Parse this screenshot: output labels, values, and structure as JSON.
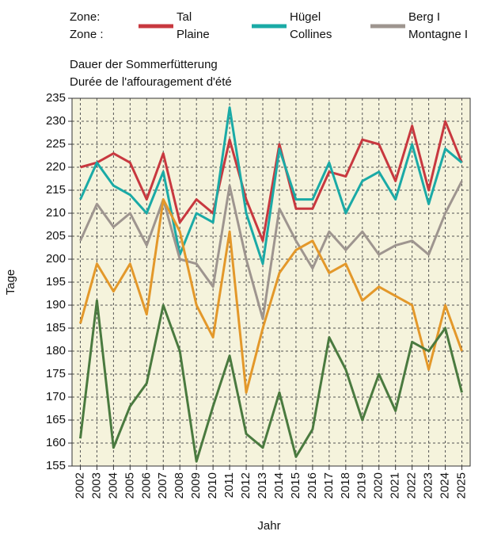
{
  "chart_data": {
    "type": "line",
    "legend_title": [
      "Zone:",
      "Zone :"
    ],
    "title": [
      "Dauer der Sommerfütterung",
      "Durée de l'affouragement d'été"
    ],
    "x_label": "Jahr",
    "y_label": "Tage",
    "categories": [
      "2002",
      "2003",
      "2004",
      "2005",
      "2006",
      "2007",
      "2008",
      "2009",
      "2010",
      "2011",
      "2012",
      "2013",
      "2014",
      "2015",
      "2016",
      "2017",
      "2018",
      "2019",
      "2020",
      "2021",
      "2022",
      "2023",
      "2024",
      "2025"
    ],
    "series": [
      {
        "name": [
          "Tal",
          "Plaine"
        ],
        "color": "#c8383f",
        "values": [
          220,
          221,
          223,
          221,
          213,
          223,
          208,
          213,
          210,
          226,
          213,
          204,
          225,
          211,
          211,
          219,
          218,
          226,
          225,
          217,
          229,
          215,
          230,
          221
        ]
      },
      {
        "name": [
          "Hügel",
          "Collines"
        ],
        "color": "#1aaaa6",
        "values": [
          213,
          221,
          216,
          214,
          210,
          219,
          201,
          210,
          208,
          233,
          210,
          199,
          224,
          213,
          213,
          221,
          210,
          217,
          219,
          213,
          225,
          212,
          224,
          221
        ]
      },
      {
        "name": [
          "Berg I",
          "Montagne I"
        ],
        "color": "#9e958f",
        "values": [
          204,
          212,
          207,
          210,
          203,
          213,
          200,
          199,
          194,
          216,
          200,
          187,
          211,
          204,
          198,
          206,
          202,
          206,
          201,
          203,
          204,
          201,
          210,
          217
        ]
      },
      {
        "color": "#e3982a",
        "values": [
          186,
          199,
          193,
          199,
          188,
          213,
          206,
          190,
          183,
          206,
          171,
          185,
          197,
          202,
          204,
          197,
          199,
          191,
          194,
          192,
          190,
          176,
          190,
          180
        ]
      },
      {
        "color": "#4a7a3f",
        "values": [
          161,
          191,
          159,
          168,
          173,
          190,
          180,
          156,
          168,
          179,
          162,
          159,
          171,
          157,
          163,
          183,
          176,
          165,
          175,
          167,
          182,
          180,
          185,
          171
        ]
      }
    ],
    "ylim": [
      155,
      235
    ],
    "yticks": [
      155,
      160,
      165,
      170,
      175,
      180,
      185,
      190,
      195,
      200,
      205,
      210,
      215,
      220,
      225,
      230,
      235
    ],
    "grid": true
  }
}
